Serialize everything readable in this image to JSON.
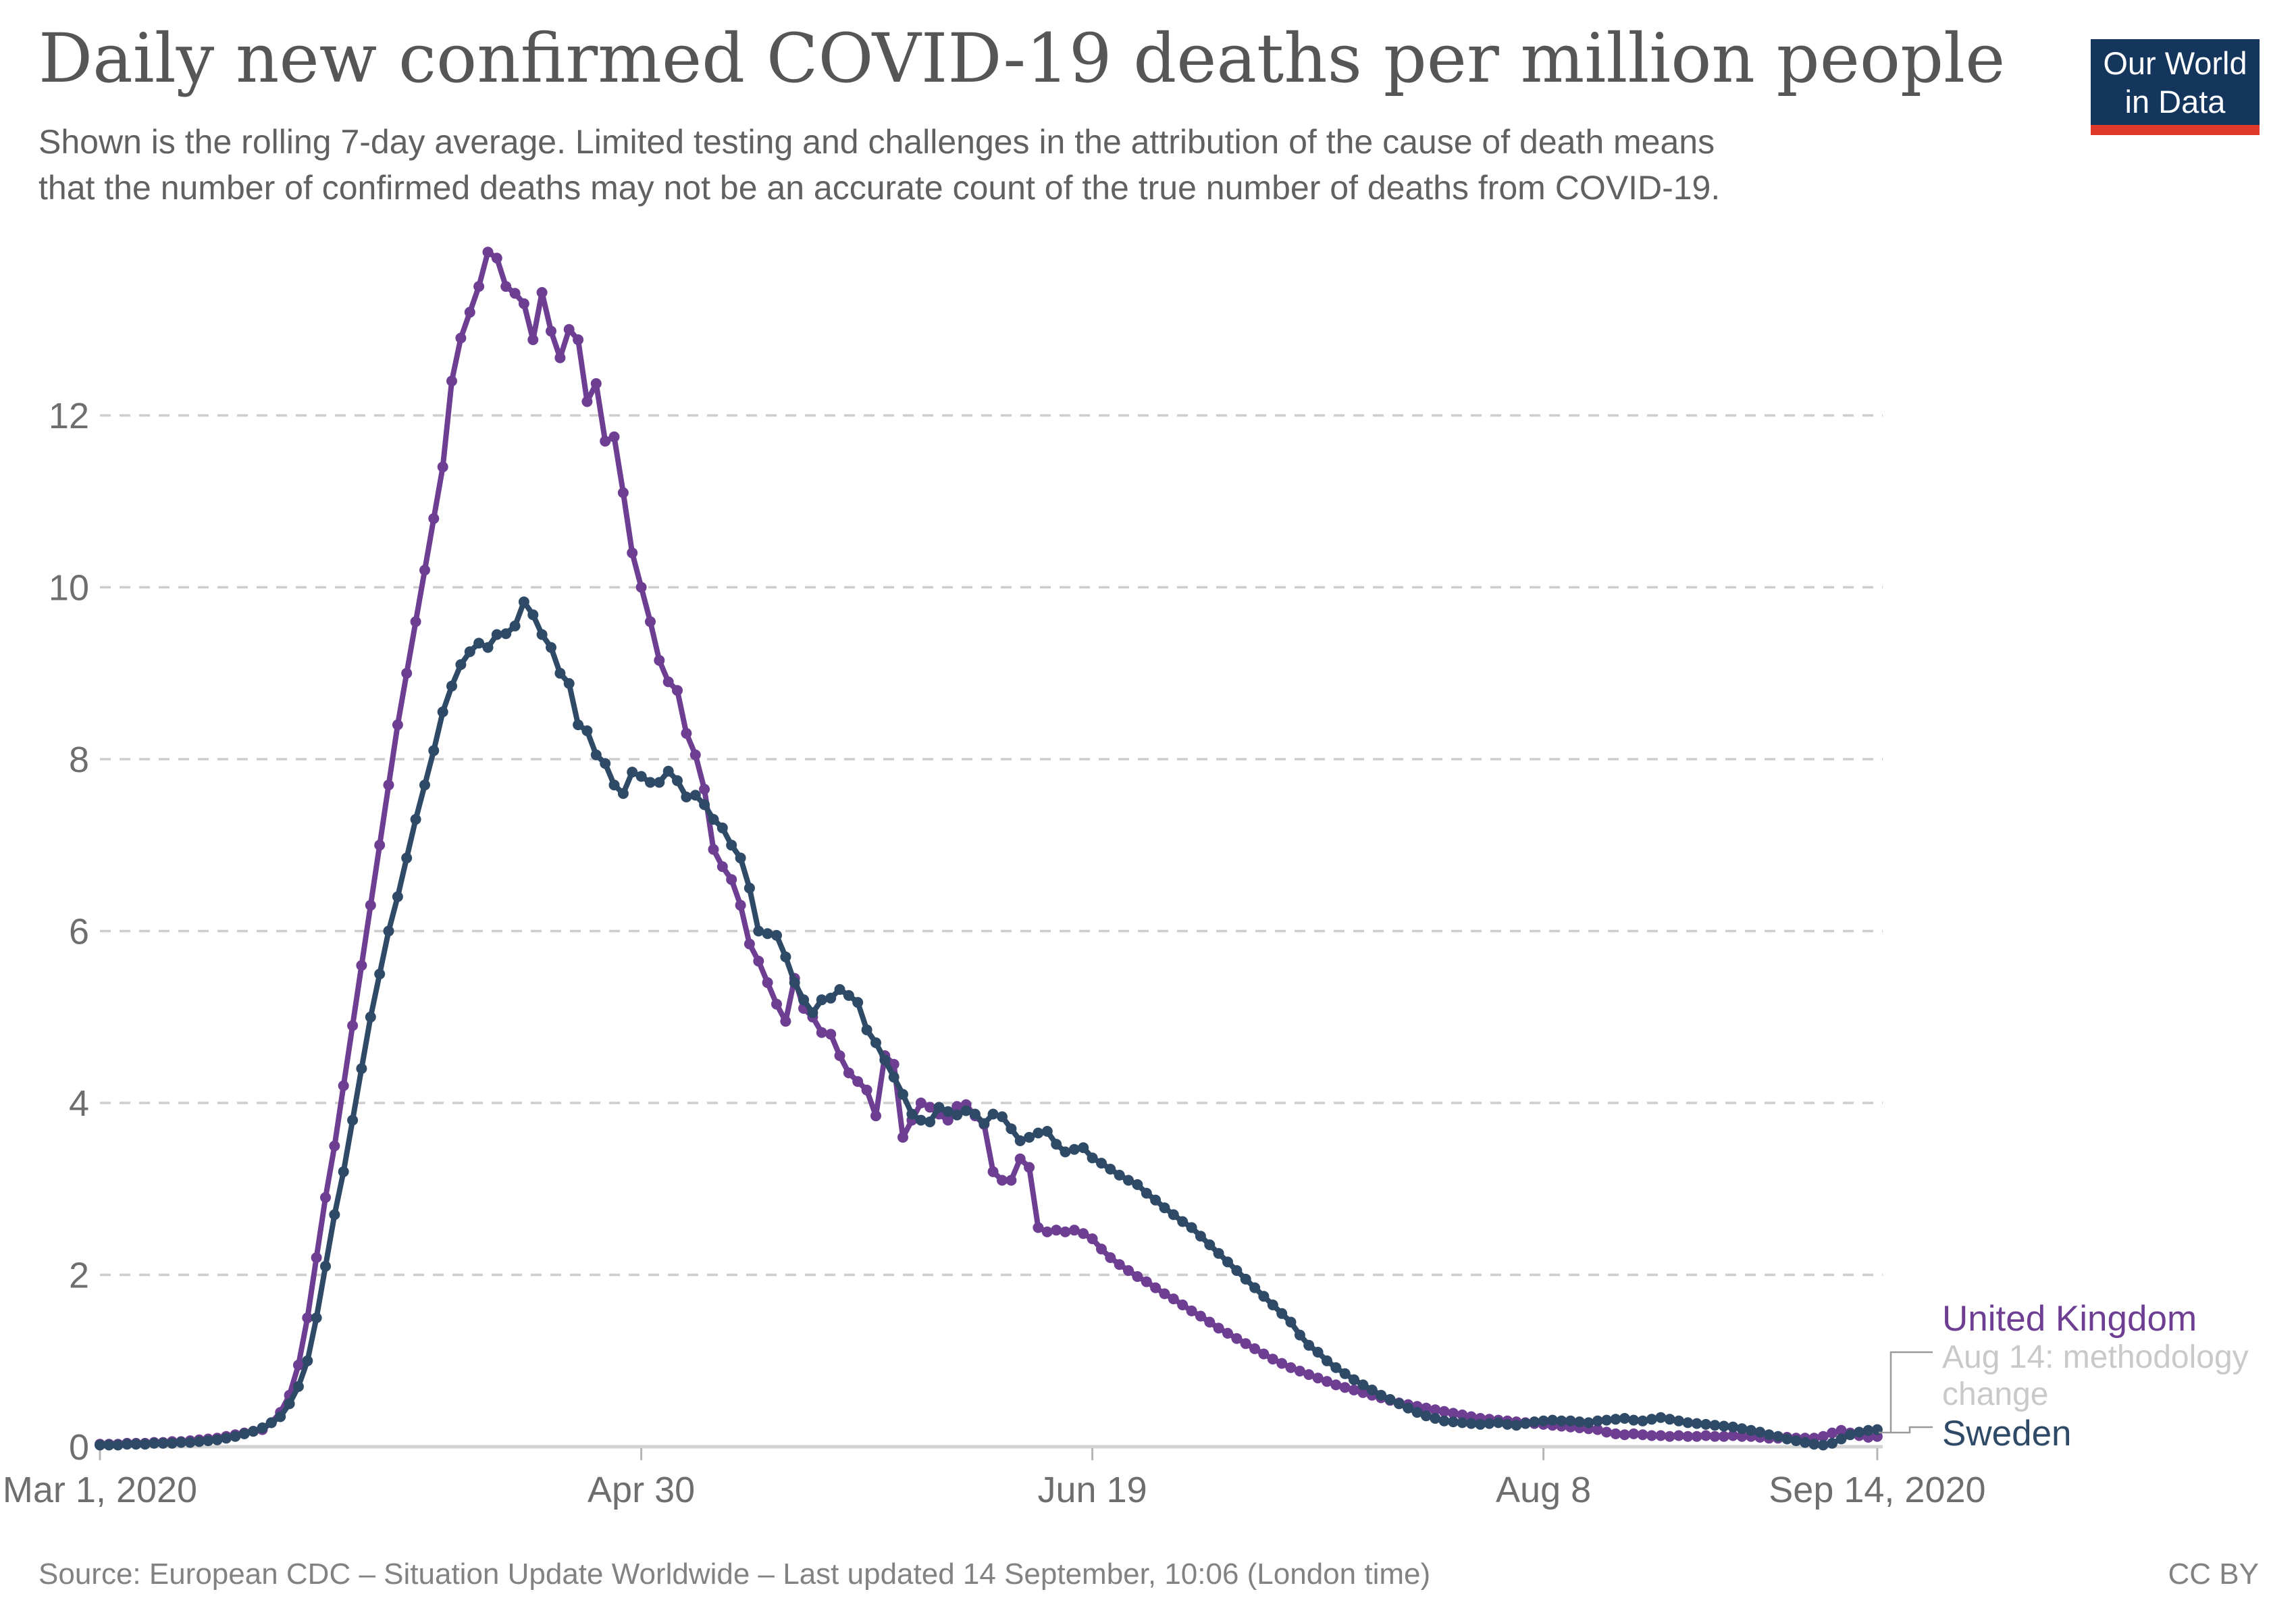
{
  "header": {
    "title": "Daily new confirmed COVID-19 deaths per million people",
    "subtitle_lines": [
      "Shown is the rolling 7-day average. Limited testing and challenges in the attribution of the cause of death means",
      "that the number of confirmed deaths may not be an accurate count of the true number of deaths from COVID-19."
    ]
  },
  "logo": {
    "line1": "Our World",
    "line2": "in Data",
    "background_color": "#15365c",
    "accent_color": "#e0392b"
  },
  "legend": {
    "items": [
      {
        "label": "United Kingdom",
        "color": "#6d3e91"
      },
      {
        "label": "Sweden",
        "color": "#2e4a66"
      }
    ],
    "annotation_lines": [
      "Aug 14: methodology",
      "change"
    ]
  },
  "footer": {
    "source": "Source: European CDC – Situation Update Worldwide – Last updated 14 September, 10:06 (London time)",
    "license": "CC BY"
  },
  "chart_data": {
    "type": "line",
    "title": "Daily new confirmed COVID-19 deaths per million people",
    "x_unit": "days since Mar 1, 2020",
    "xlabel": "",
    "ylabel": "",
    "ylim": [
      0,
      14
    ],
    "grid": "horizontal dashed",
    "legend_position": "right of plot, end-of-line labels",
    "marker_style": "circle markers on daily points",
    "x_ticks": [
      {
        "day": 0,
        "label": "Mar 1, 2020"
      },
      {
        "day": 60,
        "label": "Apr 30"
      },
      {
        "day": 110,
        "label": "Jun 19"
      },
      {
        "day": 160,
        "label": "Aug 8"
      },
      {
        "day": 197,
        "label": "Sep 14, 2020"
      }
    ],
    "y_ticks": [
      0,
      2,
      4,
      6,
      8,
      10,
      12
    ],
    "annotation": {
      "text": "Aug 14: methodology change",
      "attached_to": "United Kingdom",
      "day": 166
    },
    "series": [
      {
        "name": "United Kingdom",
        "color": "#6d3e91",
        "peak": {
          "value": 13.9,
          "approx_date": "mid-April 2020"
        },
        "values": [
          0.03,
          0.03,
          0.03,
          0.04,
          0.04,
          0.04,
          0.05,
          0.05,
          0.06,
          0.06,
          0.07,
          0.08,
          0.09,
          0.1,
          0.12,
          0.14,
          0.16,
          0.18,
          0.2,
          0.28,
          0.4,
          0.6,
          0.95,
          1.5,
          2.2,
          2.9,
          3.5,
          4.2,
          4.9,
          5.6,
          6.3,
          7.0,
          7.7,
          8.4,
          9.0,
          9.6,
          10.2,
          10.8,
          11.4,
          12.4,
          12.9,
          13.2,
          13.5,
          13.9,
          13.83,
          13.5,
          13.42,
          13.3,
          12.88,
          13.43,
          12.98,
          12.67,
          13.0,
          12.88,
          12.16,
          12.37,
          11.7,
          11.75,
          11.1,
          10.4,
          10.0,
          9.6,
          9.15,
          8.9,
          8.8,
          8.3,
          8.05,
          7.65,
          6.95,
          6.75,
          6.6,
          6.3,
          5.85,
          5.65,
          5.4,
          5.15,
          4.95,
          5.45,
          5.1,
          5.0,
          4.82,
          4.8,
          4.55,
          4.35,
          4.25,
          4.15,
          3.85,
          4.55,
          4.45,
          3.6,
          3.8,
          4.0,
          3.95,
          3.87,
          3.8,
          3.96,
          3.98,
          3.85,
          3.75,
          3.2,
          3.1,
          3.1,
          3.35,
          3.25,
          2.55,
          2.5,
          2.52,
          2.5,
          2.52,
          2.48,
          2.42,
          2.3,
          2.2,
          2.12,
          2.05,
          1.98,
          1.92,
          1.85,
          1.78,
          1.72,
          1.65,
          1.58,
          1.52,
          1.45,
          1.38,
          1.32,
          1.26,
          1.2,
          1.14,
          1.08,
          1.02,
          0.97,
          0.92,
          0.88,
          0.84,
          0.8,
          0.76,
          0.72,
          0.69,
          0.66,
          0.63,
          0.6,
          0.57,
          0.54,
          0.51,
          0.49,
          0.47,
          0.45,
          0.43,
          0.41,
          0.39,
          0.37,
          0.35,
          0.33,
          0.32,
          0.31,
          0.3,
          0.29,
          0.28,
          0.27,
          0.26,
          0.25,
          0.24,
          0.23,
          0.22,
          0.21,
          0.2,
          0.17,
          0.15,
          0.14,
          0.15,
          0.14,
          0.13,
          0.13,
          0.12,
          0.13,
          0.12,
          0.12,
          0.13,
          0.12,
          0.12,
          0.13,
          0.12,
          0.12,
          0.11,
          0.1,
          0.1,
          0.11,
          0.1,
          0.1,
          0.1,
          0.12,
          0.16,
          0.19,
          0.16,
          0.13,
          0.11,
          0.12
        ]
      },
      {
        "name": "Sweden",
        "color": "#2e4a66",
        "peak": {
          "value": 9.83,
          "approx_date": "mid-April 2020"
        },
        "values": [
          0.02,
          0.02,
          0.02,
          0.03,
          0.03,
          0.03,
          0.04,
          0.04,
          0.04,
          0.05,
          0.05,
          0.06,
          0.07,
          0.08,
          0.1,
          0.12,
          0.15,
          0.18,
          0.22,
          0.28,
          0.35,
          0.5,
          0.7,
          1.0,
          1.5,
          2.1,
          2.7,
          3.2,
          3.8,
          4.4,
          5.0,
          5.5,
          6.0,
          6.4,
          6.85,
          7.3,
          7.7,
          8.1,
          8.55,
          8.85,
          9.1,
          9.25,
          9.35,
          9.3,
          9.45,
          9.46,
          9.55,
          9.83,
          9.68,
          9.45,
          9.3,
          9.0,
          8.88,
          8.4,
          8.33,
          8.05,
          7.95,
          7.7,
          7.6,
          7.85,
          7.8,
          7.73,
          7.73,
          7.86,
          7.75,
          7.56,
          7.58,
          7.47,
          7.3,
          7.2,
          7.0,
          6.85,
          6.5,
          6.0,
          5.97,
          5.95,
          5.7,
          5.4,
          5.2,
          5.05,
          5.2,
          5.22,
          5.32,
          5.25,
          5.17,
          4.85,
          4.7,
          4.5,
          4.3,
          4.1,
          3.87,
          3.8,
          3.78,
          3.95,
          3.9,
          3.86,
          3.91,
          3.87,
          3.76,
          3.87,
          3.84,
          3.7,
          3.56,
          3.6,
          3.65,
          3.67,
          3.52,
          3.43,
          3.46,
          3.48,
          3.36,
          3.3,
          3.23,
          3.16,
          3.1,
          3.05,
          2.95,
          2.87,
          2.78,
          2.7,
          2.62,
          2.55,
          2.45,
          2.35,
          2.25,
          2.15,
          2.05,
          1.95,
          1.85,
          1.75,
          1.65,
          1.55,
          1.45,
          1.3,
          1.18,
          1.1,
          1.0,
          0.92,
          0.85,
          0.78,
          0.72,
          0.66,
          0.6,
          0.55,
          0.5,
          0.45,
          0.4,
          0.36,
          0.33,
          0.3,
          0.29,
          0.28,
          0.27,
          0.26,
          0.27,
          0.28,
          0.26,
          0.25,
          0.27,
          0.29,
          0.3,
          0.31,
          0.3,
          0.3,
          0.29,
          0.28,
          0.3,
          0.31,
          0.32,
          0.33,
          0.31,
          0.3,
          0.32,
          0.34,
          0.32,
          0.3,
          0.28,
          0.27,
          0.26,
          0.25,
          0.24,
          0.23,
          0.21,
          0.19,
          0.17,
          0.14,
          0.12,
          0.09,
          0.07,
          0.05,
          0.03,
          0.02,
          0.04,
          0.09,
          0.14,
          0.17,
          0.19,
          0.2
        ]
      }
    ]
  }
}
